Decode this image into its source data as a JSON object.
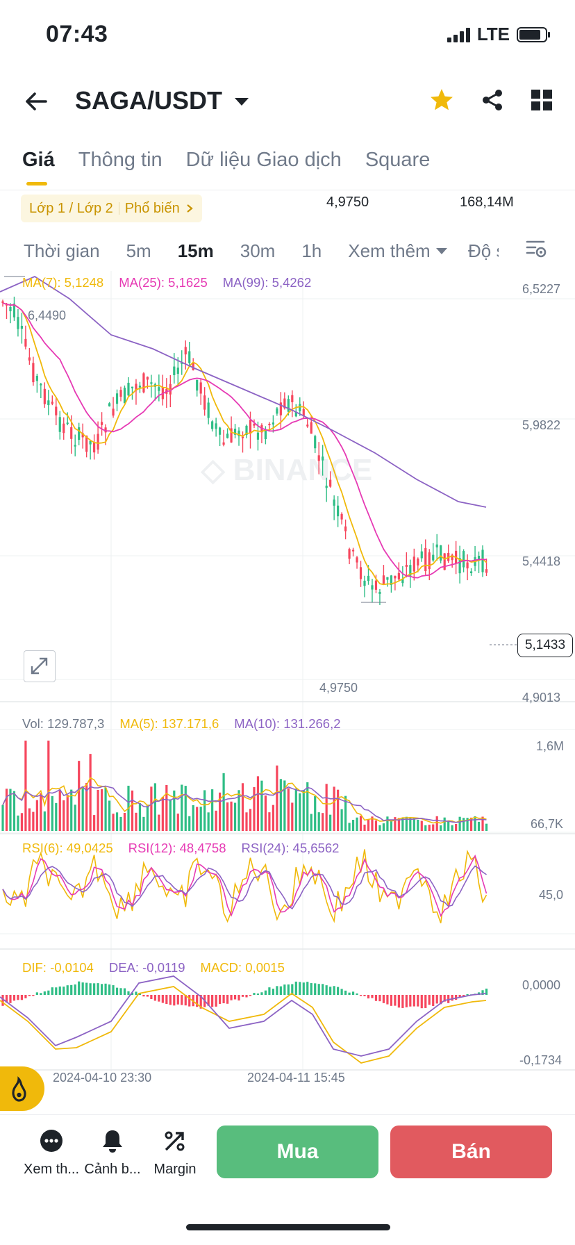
{
  "status": {
    "time": "07:43",
    "network": "LTE"
  },
  "header": {
    "pair": "SAGA/USDT"
  },
  "tabs": [
    {
      "label": "Giá",
      "active": true
    },
    {
      "label": "Thông tin"
    },
    {
      "label": "Dữ liệu Giao dịch"
    },
    {
      "label": "Square"
    }
  ],
  "info": {
    "layer_label": "Lớp 1 / Lớp 2",
    "popular_label": "Phổ biến",
    "price": "4,9750",
    "volume": "168,14M"
  },
  "intervals": {
    "time_label": "Thời gian",
    "items": [
      {
        "label": "5m"
      },
      {
        "label": "15m",
        "active": true
      },
      {
        "label": "30m"
      },
      {
        "label": "1h"
      }
    ],
    "more_label": "Xem thêm",
    "depth_label": "Độ sâu"
  },
  "ma_legend": {
    "ma7": "MA(7): 5,1248",
    "ma25": "MA(25): 5,1625",
    "ma99": "MA(99): 5,4262"
  },
  "price_axis": [
    "6,5227",
    "5,9822",
    "5,4418",
    "4,9013"
  ],
  "current_price": "5,1433",
  "high_label": "6,4490",
  "low_label": "4,9750",
  "vol_legend": {
    "vol": "Vol: 129.787,3",
    "ma5": "MA(5): 137.171,6",
    "ma10": "MA(10): 131.266,2"
  },
  "vol_axis": [
    "1,6M",
    "66,7K"
  ],
  "rsi_legend": {
    "rsi6": "RSI(6): 49,0425",
    "rsi12": "RSI(12): 48,4758",
    "rsi24": "RSI(24): 45,6562"
  },
  "rsi_axis": "45,0",
  "macd_legend": {
    "dif": "DIF: -0,0104",
    "dea": "DEA: -0,0119",
    "macd": "MACD: 0,0015"
  },
  "macd_axis": [
    "0,0000",
    "-0,1734"
  ],
  "time_axis": [
    "2024-04-10 23:30",
    "2024-04-11 15:45"
  ],
  "colors": {
    "up": "#2ebd85",
    "down": "#f6465d",
    "ma7": "#f0b90b",
    "ma25": "#e63ab4",
    "ma99": "#8c63c4",
    "accent": "#f0b90b",
    "buy": "#58bd7d",
    "sell": "#e15a5f"
  },
  "bottom_nav": [
    {
      "label": "Xem th...",
      "icon": "more-dots-icon"
    },
    {
      "label": "Cảnh b...",
      "icon": "bell-icon"
    },
    {
      "label": "Margin",
      "icon": "margin-icon"
    }
  ],
  "actions": {
    "buy": "Mua",
    "sell": "Bán"
  }
}
